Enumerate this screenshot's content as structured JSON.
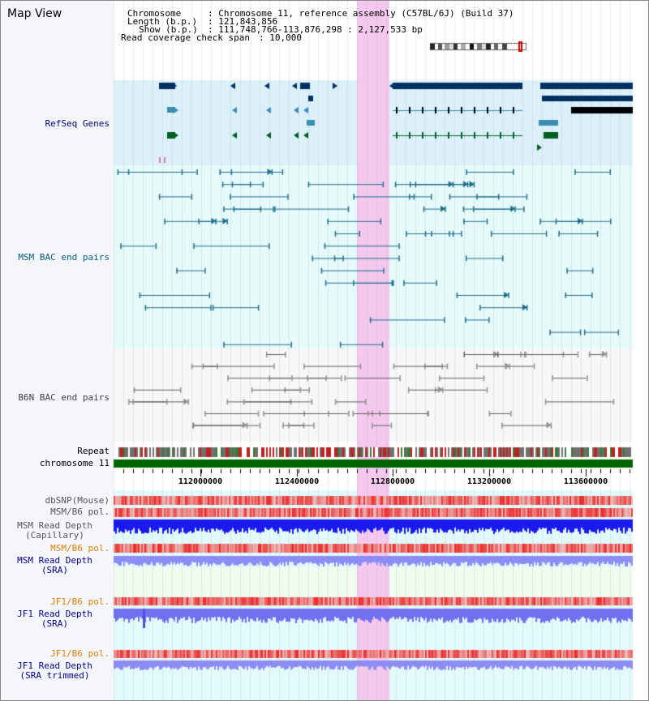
{
  "view_title": "Map View",
  "info": {
    "chromosome_label": "Chromosome",
    "chromosome_value": ": Chromosome 11, reference assembly (C57BL/6J) (Build 37)",
    "length_label": "Length (b.p.)",
    "length_value": ": 121,843,856",
    "show_label": "Show (b.p.)",
    "show_value": ": 111,748,766-113,876,298 : 2,127,533 bp",
    "span_label": "Read coverage check span",
    "span_value": ": 10,000"
  },
  "tracks": {
    "refseq": "RefSeq Genes",
    "msm_bac": "MSM BAC end pairs",
    "b6n_bac": "B6N BAC end pairs",
    "repeat": "Repeat",
    "chromosome": "chromosome 11",
    "dbsnp": "dbSNP(Mouse)",
    "msm_pol": "MSM/B6 pol.",
    "msm_cap": "MSM Read Depth\n(Capillary)",
    "msm_pol2": "MSM/B6 pol.",
    "msm_sra": "MSM Read Depth\n(SRA)",
    "jf1_pol": "JF1/B6 pol.",
    "jf1_sra": "JF1 Read Depth\n(SRA)",
    "jf1_pol2": "JF1/B6 pol.",
    "jf1_trim": "JF1 Read Depth\n(SRA trimmed)"
  },
  "axis": {
    "ticks": [
      "112000000",
      "112400000",
      "112800000",
      "113200000",
      "113600000"
    ]
  },
  "colors": {
    "refseq_bg": "#dcf0fa",
    "bac_bg": "#e6fafa",
    "b6n_bg": "#f7f7f7",
    "highlight": "#f5c8ee",
    "chromosome_bar": "#006400",
    "msm_label": "#006080",
    "refseq_label": "#000080",
    "pol_label": "#e08000",
    "depth_label": "#000099"
  }
}
